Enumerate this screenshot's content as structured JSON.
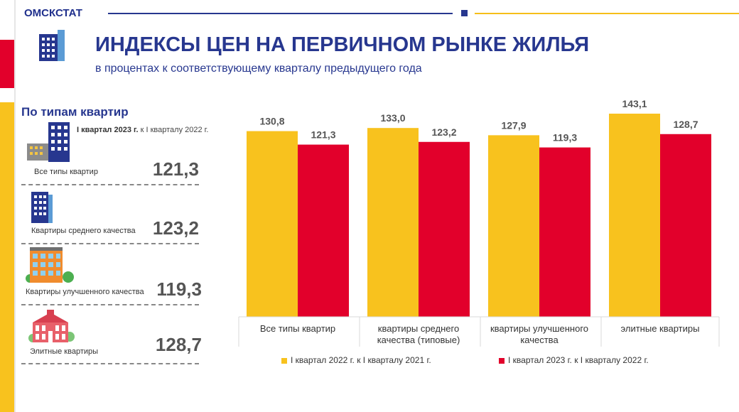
{
  "header": {
    "org": "ОМСКСТАТ",
    "title": "ИНДЕКСЫ ЦЕН НА ПЕРВИЧНОМ РЫНКЕ ЖИЛЬЯ",
    "subtitle": "в процентах к соответствующему кварталу предыдущего года"
  },
  "colors": {
    "navy": "#27378f",
    "yellow": "#f8c21e",
    "red": "#e2002b"
  },
  "sidebar": {
    "section_title": "По типам квартир",
    "period_bold": "I квартал 2023 г.",
    "period_rest": "к I кварталу 2022 г.",
    "items": [
      {
        "label": "Все типы квартир",
        "value": "121,3",
        "icon": "apartment-block-icon"
      },
      {
        "label": "Квартиры среднего качества",
        "value": "123,2",
        "icon": "tower-building-icon"
      },
      {
        "label": "Квартиры улучшенного качества",
        "value": "119,3",
        "icon": "residential-building-icon"
      },
      {
        "label": "Элитные квартиры",
        "value": "128,7",
        "icon": "mansion-icon"
      }
    ]
  },
  "chart_data": {
    "type": "bar",
    "categories": [
      [
        "Все типы квартир"
      ],
      [
        "квартиры среднего",
        "качества (типовые)"
      ],
      [
        "квартиры улучшенного",
        "качества"
      ],
      [
        "элитные квартиры"
      ]
    ],
    "series": [
      {
        "name": "I квартал 2022 г. к I кварталу 2021 г.",
        "values": [
          130.8,
          133.0,
          127.9,
          143.1
        ],
        "labels": [
          "130,8",
          "133,0",
          "127,9",
          "143,1"
        ],
        "color": "#f8c21e"
      },
      {
        "name": "I квартал 2023 г. к I кварталу 2022 г.",
        "values": [
          121.3,
          123.2,
          119.3,
          128.7
        ],
        "labels": [
          "121,3",
          "123,2",
          "119,3",
          "128,7"
        ],
        "color": "#e2002b"
      }
    ],
    "ylim": [
      0,
      143.1
    ],
    "grid": false,
    "legend": "bottom"
  }
}
